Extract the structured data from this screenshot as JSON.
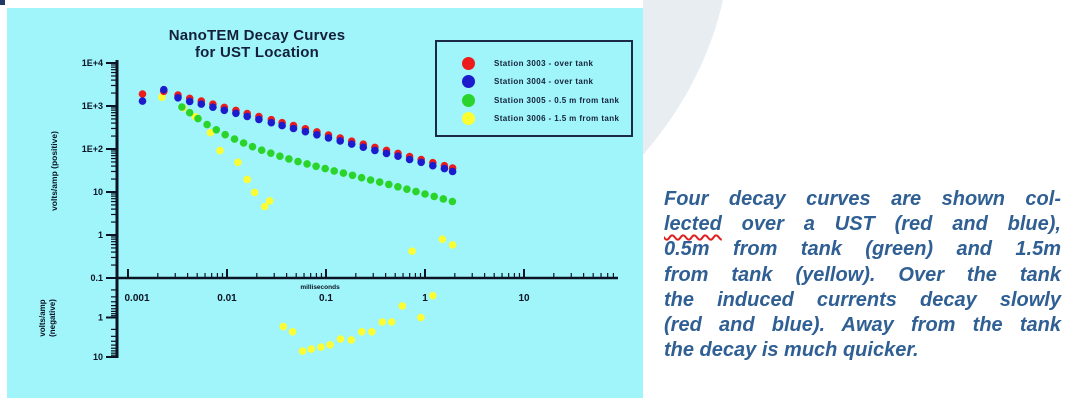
{
  "panel": {
    "background": "#9ff5f9"
  },
  "decoration": {
    "arc_color": "#e8edf2",
    "corner_color": "#1f3864"
  },
  "chart": {
    "title_lines": [
      "NanoTEM Decay Curves",
      "for UST Location"
    ],
    "title_color": "#14203a",
    "legend_items": [
      {
        "label": "Station 3003 - over tank",
        "color": "#ec1c1c"
      },
      {
        "label": "Station 3004 - over tank",
        "color": "#1c1ccd"
      },
      {
        "label": "Station 3005 - 0.5 m from tank",
        "color": "#2ad42a"
      },
      {
        "label": "Station 3006 - 1.5 m from tank",
        "color": "#fdfd33"
      }
    ]
  },
  "chart_data": {
    "type": "scatter",
    "title": "NanoTEM Decay Curves for UST Location",
    "x_axis": {
      "label": "milliseconds",
      "scale": "log",
      "ticks": [
        0.001,
        0.01,
        0.1,
        1,
        10
      ],
      "tick_labels": [
        "0.001",
        "0.01",
        "0.1",
        "1",
        "10"
      ],
      "range": [
        0.001,
        90
      ]
    },
    "y_axis_positive": {
      "label": "volts/amp (positive)",
      "scale": "log",
      "ticks": [
        10000,
        1000,
        100,
        10,
        1,
        0.1
      ],
      "tick_labels": [
        "1E+4",
        "1E+3",
        "1E+2",
        "10",
        "1",
        "0.1"
      ]
    },
    "y_axis_negative": {
      "label_lines": [
        "volts/amp",
        "(negative)"
      ],
      "scale": "log-reversed-downward",
      "ticks": [
        1,
        10
      ],
      "tick_labels": [
        "1",
        "10"
      ],
      "note": "negative voltage magnitude increases downward from 0.1 at the x-axis"
    },
    "legend_position": "top-right",
    "grid": false,
    "series": [
      {
        "name": "Station 3003 - over tank",
        "color": "#ec1c1c",
        "points": [
          [
            0.0014,
            1900
          ],
          [
            0.0023,
            2200
          ],
          [
            0.0032,
            1800
          ],
          [
            0.0042,
            1500
          ],
          [
            0.0055,
            1300
          ],
          [
            0.0072,
            1100
          ],
          [
            0.0094,
            930
          ],
          [
            0.0123,
            790
          ],
          [
            0.016,
            670
          ],
          [
            0.021,
            570
          ],
          [
            0.028,
            480
          ],
          [
            0.036,
            410
          ],
          [
            0.047,
            350
          ],
          [
            0.062,
            295
          ],
          [
            0.081,
            250
          ],
          [
            0.106,
            212
          ],
          [
            0.139,
            180
          ],
          [
            0.182,
            152
          ],
          [
            0.238,
            129
          ],
          [
            0.312,
            109
          ],
          [
            0.408,
            93
          ],
          [
            0.534,
            79
          ],
          [
            0.699,
            67
          ],
          [
            0.915,
            57
          ],
          [
            1.2,
            48
          ],
          [
            1.57,
            41
          ],
          [
            1.9,
            36
          ]
        ]
      },
      {
        "name": "Station 3004 - over tank",
        "color": "#1c1ccd",
        "points": [
          [
            0.0014,
            1300
          ],
          [
            0.0023,
            2400
          ],
          [
            0.0032,
            1550
          ],
          [
            0.0042,
            1280
          ],
          [
            0.0055,
            1110
          ],
          [
            0.0072,
            940
          ],
          [
            0.0094,
            795
          ],
          [
            0.0123,
            675
          ],
          [
            0.016,
            572
          ],
          [
            0.021,
            487
          ],
          [
            0.028,
            410
          ],
          [
            0.036,
            350
          ],
          [
            0.047,
            299
          ],
          [
            0.062,
            252
          ],
          [
            0.081,
            214
          ],
          [
            0.106,
            181
          ],
          [
            0.139,
            154
          ],
          [
            0.182,
            130
          ],
          [
            0.238,
            110
          ],
          [
            0.312,
            93
          ],
          [
            0.408,
            79
          ],
          [
            0.534,
            68
          ],
          [
            0.699,
            57
          ],
          [
            0.915,
            49
          ],
          [
            1.2,
            41
          ],
          [
            1.57,
            35
          ],
          [
            1.9,
            30
          ]
        ]
      },
      {
        "name": "Station 3005 - 0.5 m from tank",
        "color": "#2ad42a",
        "points": [
          [
            0.0035,
            950
          ],
          [
            0.0042,
            700
          ],
          [
            0.0051,
            510
          ],
          [
            0.0063,
            370
          ],
          [
            0.0078,
            280
          ],
          [
            0.0096,
            215
          ],
          [
            0.0119,
            170
          ],
          [
            0.0147,
            138
          ],
          [
            0.0181,
            113
          ],
          [
            0.0224,
            94
          ],
          [
            0.0277,
            80
          ],
          [
            0.0342,
            68
          ],
          [
            0.0422,
            59
          ],
          [
            0.0521,
            51
          ],
          [
            0.0644,
            45
          ],
          [
            0.0795,
            39.5
          ],
          [
            0.0982,
            35
          ],
          [
            0.121,
            31
          ],
          [
            0.15,
            27.5
          ],
          [
            0.185,
            24.5
          ],
          [
            0.229,
            21.5
          ],
          [
            0.282,
            19
          ],
          [
            0.349,
            17
          ],
          [
            0.431,
            15
          ],
          [
            0.532,
            13.2
          ],
          [
            0.657,
            11.6
          ],
          [
            0.811,
            10.2
          ],
          [
            1.0,
            9.0
          ],
          [
            1.24,
            7.9
          ],
          [
            1.53,
            6.9
          ],
          [
            1.89,
            6.0
          ]
        ]
      },
      {
        "name": "Station 3006 - 1.5 m from tank",
        "color": "#fdfd33",
        "points": [
          [
            0.0022,
            1600
          ],
          [
            0.0036,
            910
          ],
          [
            0.0048,
            560
          ],
          [
            0.0068,
            240
          ],
          [
            0.0085,
            92
          ],
          [
            0.0129,
            49
          ],
          [
            0.016,
            19.6
          ],
          [
            0.019,
            9.8
          ],
          [
            0.024,
            4.6
          ],
          [
            0.027,
            6.2
          ],
          [
            0.037,
            -1.7
          ],
          [
            0.046,
            -2.3
          ],
          [
            0.058,
            -7.1
          ],
          [
            0.071,
            -6.3
          ],
          [
            0.089,
            -5.6
          ],
          [
            0.11,
            -4.9
          ],
          [
            0.14,
            -3.5
          ],
          [
            0.18,
            -3.7
          ],
          [
            0.23,
            -2.3
          ],
          [
            0.29,
            -2.3
          ],
          [
            0.37,
            -1.3
          ],
          [
            0.46,
            -1.3
          ],
          [
            0.59,
            -0.51
          ],
          [
            0.74,
            0.42
          ],
          [
            0.91,
            -1.0
          ],
          [
            1.2,
            -0.28
          ],
          [
            1.5,
            0.8
          ],
          [
            1.9,
            0.59
          ]
        ]
      }
    ]
  },
  "caption": {
    "color": "#2f5f93",
    "lines": [
      {
        "segments": [
          {
            "text": "Four decay curves are shown col-"
          }
        ]
      },
      {
        "segments": [
          {
            "text": "lected",
            "squiggle": true
          },
          {
            "text": " over a UST (red and blue),"
          }
        ]
      },
      {
        "segments": [
          {
            "text": "0.5m from tank (green) and 1.5m"
          }
        ]
      },
      {
        "segments": [
          {
            "text": "from tank (yellow). Over the tank"
          }
        ]
      },
      {
        "segments": [
          {
            "text": "the induced currents decay slowly"
          }
        ]
      },
      {
        "segments": [
          {
            "text": "(red and blue). Away from the tank"
          }
        ]
      },
      {
        "segments": [
          {
            "text": "the decay is much quicker.",
            "last": true
          }
        ]
      }
    ]
  }
}
